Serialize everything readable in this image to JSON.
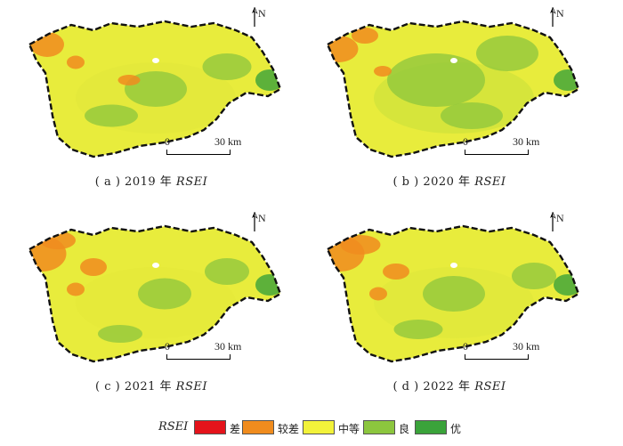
{
  "panels": [
    {
      "label_prefix": "( a )  2019 年 ",
      "label_rsei": "RSEI",
      "scale_zero": "0",
      "scale_end": "30 km",
      "north": "N",
      "orange": [
        [
          28,
          30,
          38,
          28
        ],
        [
          60,
          50,
          20,
          15
        ],
        [
          120,
          70,
          25,
          12
        ]
      ],
      "green": [
        [
          150,
          80,
          70,
          40
        ],
        [
          230,
          55,
          55,
          30
        ],
        [
          100,
          110,
          60,
          25
        ]
      ],
      "center": "#e3e83a"
    },
    {
      "label_prefix": "( b )  2020 年 ",
      "label_rsei": "RSEI",
      "scale_zero": "0",
      "scale_end": "30 km",
      "north": "N",
      "orange": [
        [
          20,
          35,
          45,
          30
        ],
        [
          50,
          20,
          30,
          18
        ],
        [
          70,
          60,
          20,
          12
        ]
      ],
      "green": [
        [
          130,
          70,
          110,
          60
        ],
        [
          210,
          40,
          70,
          40
        ],
        [
          170,
          110,
          70,
          30
        ]
      ],
      "center": "#cfe23a"
    },
    {
      "label_prefix": "( c )  2021 年 ",
      "label_rsei": "RSEI",
      "scale_zero": "0",
      "scale_end": "30 km",
      "north": "N",
      "orange": [
        [
          22,
          35,
          55,
          40
        ],
        [
          40,
          20,
          40,
          20
        ],
        [
          80,
          50,
          30,
          20
        ],
        [
          60,
          75,
          20,
          15
        ]
      ],
      "green": [
        [
          160,
          80,
          60,
          35
        ],
        [
          230,
          55,
          50,
          30
        ],
        [
          110,
          125,
          50,
          20
        ]
      ],
      "center": "#e6ea39"
    },
    {
      "label_prefix": "( d )  2022 年 ",
      "label_rsei": "RSEI",
      "scale_zero": "0",
      "scale_end": "30 km",
      "north": "N",
      "orange": [
        [
          22,
          35,
          55,
          40
        ],
        [
          45,
          25,
          45,
          22
        ],
        [
          85,
          55,
          30,
          18
        ],
        [
          65,
          80,
          20,
          15
        ]
      ],
      "green": [
        [
          150,
          80,
          70,
          40
        ],
        [
          240,
          60,
          50,
          30
        ],
        [
          110,
          120,
          55,
          22
        ]
      ],
      "center": "#dfe83a"
    }
  ],
  "legend": {
    "title": "RSEI",
    "items": [
      {
        "label": "差",
        "color": "#e4131b"
      },
      {
        "label": "较差",
        "color": "#f08c1e"
      },
      {
        "label": "中等",
        "color": "#f2f23a"
      },
      {
        "label": "良",
        "color": "#8cc63e"
      },
      {
        "label": "优",
        "color": "#3aa33a"
      }
    ]
  },
  "colors": {
    "border": "#111111",
    "base": "#e8ec3c"
  }
}
